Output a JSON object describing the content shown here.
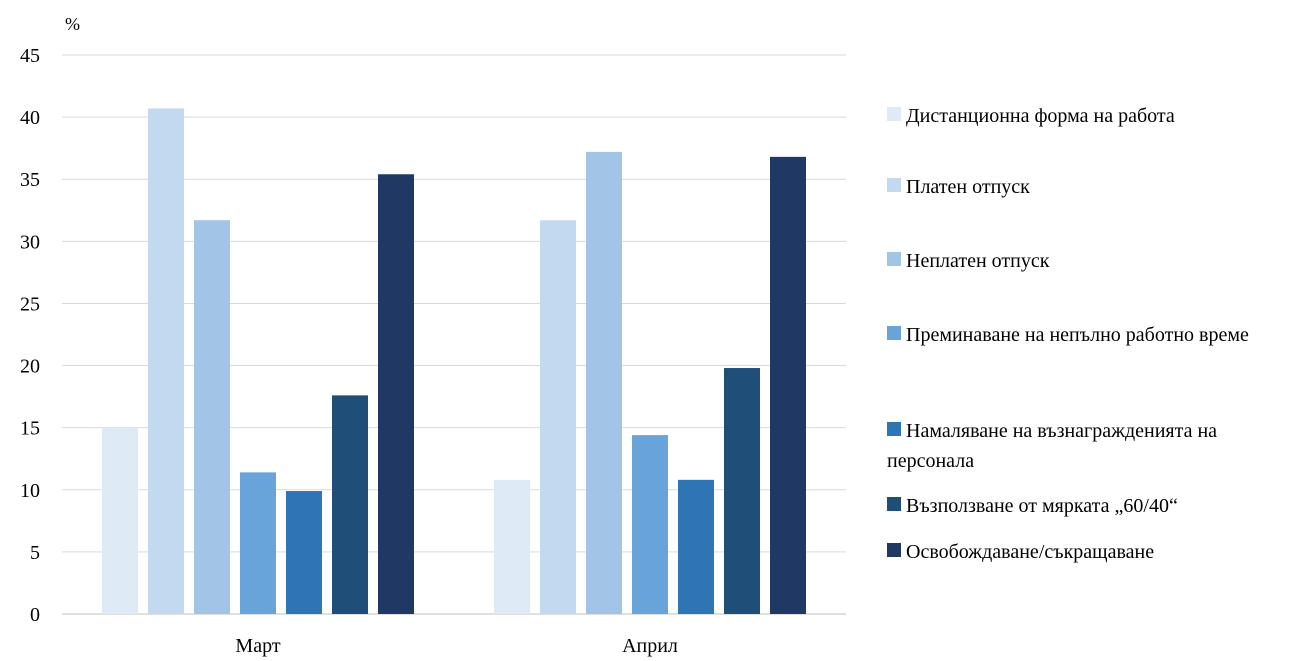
{
  "chart_data": {
    "type": "bar",
    "y_unit_label": "%",
    "categories": [
      "Март",
      "Април"
    ],
    "ylim": [
      0,
      45
    ],
    "y_ticks": [
      0,
      5,
      10,
      15,
      20,
      25,
      30,
      35,
      40,
      45
    ],
    "grid": true,
    "legend_position": "right",
    "series": [
      {
        "name": "Дистанционна форма на работа",
        "values": [
          15.0,
          10.8
        ],
        "color": "#deebf7"
      },
      {
        "name": "Платен отпуск",
        "values": [
          40.7,
          31.7
        ],
        "color": "#c3d9f0"
      },
      {
        "name": "Неплатен отпуск",
        "values": [
          31.7,
          37.2
        ],
        "color": "#a2c4e6"
      },
      {
        "name": "Преминаване на непълно работно време",
        "values": [
          11.4,
          14.4
        ],
        "color": "#68a4da"
      },
      {
        "name": "Намаляване на възнагражденията на персонала",
        "values": [
          9.9,
          10.8
        ],
        "color": "#2e75b6"
      },
      {
        "name": "Възползване от мярката „60/40“",
        "values": [
          17.6,
          19.8
        ],
        "color": "#1f4e79"
      },
      {
        "name": "Освобождаване/съкращаване",
        "values": [
          35.4,
          36.8
        ],
        "color": "#203864"
      }
    ]
  }
}
